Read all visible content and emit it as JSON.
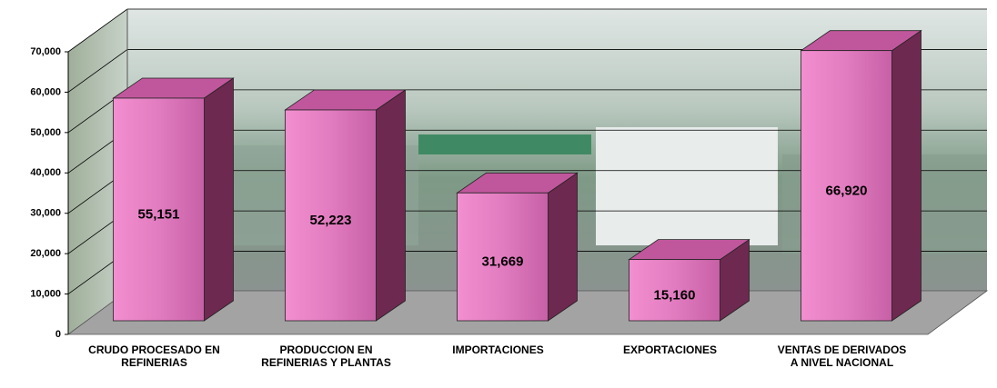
{
  "chart_data": {
    "type": "bar",
    "categories": [
      "CRUDO PROCESADO EN REFINERIAS",
      "PRODUCCION EN REFINERIAS Y PLANTAS",
      "IMPORTACIONES",
      "EXPORTACIONES",
      "VENTAS DE DERIVADOS A NIVEL NACIONAL"
    ],
    "values": [
      55151,
      52223,
      31669,
      15160,
      66920
    ],
    "value_labels": [
      "55,151",
      "52,223",
      "31,669",
      "15,160",
      "66,920"
    ],
    "color": "#e27cc0",
    "ylim": [
      0,
      70000
    ],
    "yticks": [
      0,
      {
        "value": 10000,
        "label": "10,000"
      },
      {
        "value": 20000,
        "label": "20,000"
      },
      {
        "value": 30000,
        "label": "30,000"
      },
      {
        "value": 40000,
        "label": "40,000"
      },
      {
        "value": 50000,
        "label": "50,000"
      },
      {
        "value": 60000,
        "label": "60,000"
      },
      {
        "value": 70000,
        "label": "70,000"
      }
    ],
    "grid": true
  }
}
